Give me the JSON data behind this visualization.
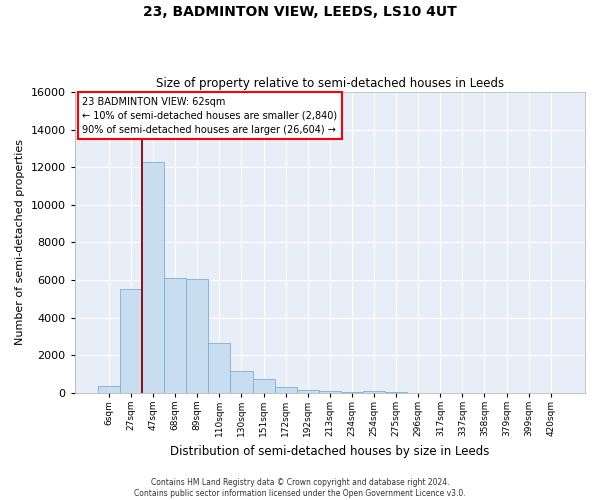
{
  "title1": "23, BADMINTON VIEW, LEEDS, LS10 4UT",
  "title2": "Size of property relative to semi-detached houses in Leeds",
  "xlabel": "Distribution of semi-detached houses by size in Leeds",
  "ylabel": "Number of semi-detached properties",
  "bar_labels": [
    "6sqm",
    "27sqm",
    "47sqm",
    "68sqm",
    "89sqm",
    "110sqm",
    "130sqm",
    "151sqm",
    "172sqm",
    "192sqm",
    "213sqm",
    "234sqm",
    "254sqm",
    "275sqm",
    "296sqm",
    "317sqm",
    "337sqm",
    "358sqm",
    "379sqm",
    "399sqm",
    "420sqm"
  ],
  "bar_values": [
    380,
    5500,
    12300,
    6100,
    6050,
    2650,
    1150,
    750,
    290,
    140,
    95,
    40,
    95,
    40,
    0,
    0,
    0,
    0,
    0,
    0,
    0
  ],
  "bar_color": "#c9ddf0",
  "bar_edge_color": "#7bafd4",
  "red_line_x": 1.5,
  "annotation_line1": "23 BADMINTON VIEW: 62sqm",
  "annotation_line2": "← 10% of semi-detached houses are smaller (2,840)",
  "annotation_line3": "90% of semi-detached houses are larger (26,604) →",
  "ylim_max": 16000,
  "yticks": [
    0,
    2000,
    4000,
    6000,
    8000,
    10000,
    12000,
    14000,
    16000
  ],
  "footer1": "Contains HM Land Registry data © Crown copyright and database right 2024.",
  "footer2": "Contains public sector information licensed under the Open Government Licence v3.0.",
  "bg_color": "#e8eef8"
}
